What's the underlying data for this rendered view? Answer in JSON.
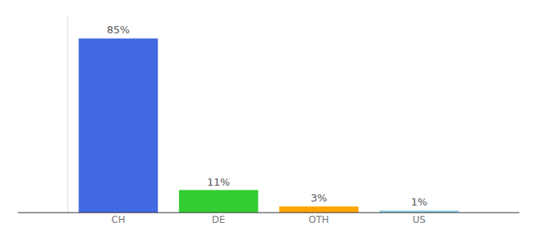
{
  "chart_data": {
    "type": "bar",
    "categories": [
      "CH",
      "DE",
      "OTH",
      "US"
    ],
    "values": [
      85,
      11,
      3,
      1
    ],
    "value_labels": [
      "85%",
      "11%",
      "3%",
      "1%"
    ],
    "colors": [
      "#4169e1",
      "#32cd32",
      "#ffa500",
      "#87ceeb"
    ],
    "ylim": [
      0,
      96
    ],
    "yticks": [],
    "data_labels": true,
    "tick_labels": "x",
    "grid": false
  }
}
